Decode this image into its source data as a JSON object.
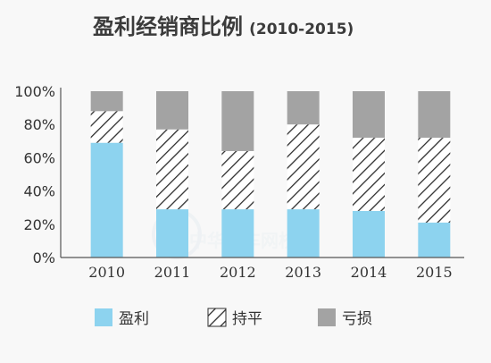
{
  "chart_data": {
    "type": "bar",
    "stacked": true,
    "title": "盈利经销商比例",
    "subtitle": "(2010-2015)",
    "categories": [
      "2010",
      "2011",
      "2012",
      "2013",
      "2014",
      "2015"
    ],
    "series": [
      {
        "name": "盈利",
        "values": [
          69,
          29,
          29,
          29,
          28,
          21
        ],
        "color": "#8dd3ef",
        "pattern": "solid"
      },
      {
        "name": "持平",
        "values": [
          19,
          48,
          35,
          51,
          44,
          51
        ],
        "color": "#333333",
        "pattern": "hatch"
      },
      {
        "name": "亏损",
        "values": [
          12,
          23,
          36,
          20,
          28,
          28
        ],
        "color": "#a3a3a3",
        "pattern": "solid"
      }
    ],
    "y_ticks": [
      "0%",
      "20%",
      "40%",
      "60%",
      "80%",
      "100%"
    ],
    "ylim": [
      0,
      100
    ],
    "legend_position": "bottom",
    "grid": false
  },
  "watermark_text": "中华汽车网校"
}
